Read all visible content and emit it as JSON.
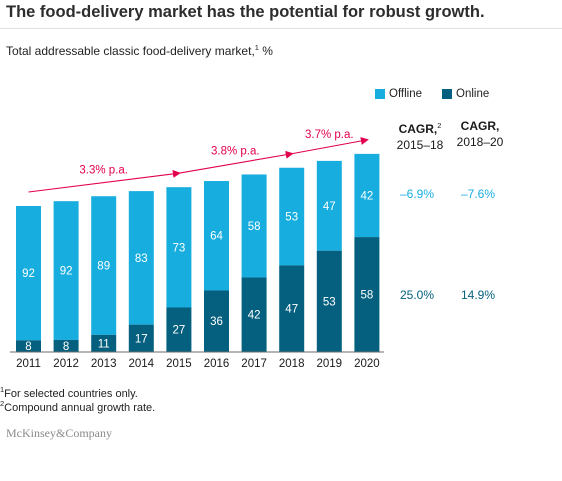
{
  "header": {
    "title": "The food-delivery market has the potential for robust growth.",
    "subtitle": "Total addressable classic food-delivery market,",
    "subtitle_sup": "1",
    "subtitle_unit": " %"
  },
  "legend": {
    "offline": "Offline",
    "online": "Online"
  },
  "cagr": {
    "col1_label": "CAGR,",
    "col1_sup": "2",
    "col1_period": "2015–18",
    "col2_label": "CAGR,",
    "col2_period": "2018–20",
    "offline_col1": "–6.9%",
    "offline_col2": "–7.6%",
    "online_col1": "25.0%",
    "online_col2": "14.9%"
  },
  "growth_annotations": [
    {
      "label": "3.3% p.a."
    },
    {
      "label": "3.8% p.a."
    },
    {
      "label": "3.7% p.a."
    }
  ],
  "footnotes": {
    "fn1_sup": "1",
    "fn1_text": "For selected countries only.",
    "fn2_sup": "2",
    "fn2_text": "Compound annual growth rate."
  },
  "source": "McKinsey&Company",
  "colors": {
    "offline": "#17aedf",
    "online": "#05607f",
    "arrow": "#e2004f",
    "text_dark": "#1a1a1a"
  },
  "chart_data": {
    "type": "bar",
    "stacked": true,
    "categories": [
      "2011",
      "2012",
      "2013",
      "2014",
      "2015",
      "2016",
      "2017",
      "2018",
      "2019",
      "2020"
    ],
    "series": [
      {
        "name": "Online",
        "values": [
          8,
          8,
          11,
          17,
          27,
          36,
          42,
          47,
          53,
          58
        ]
      },
      {
        "name": "Offline",
        "values": [
          92,
          92,
          89,
          83,
          73,
          64,
          58,
          53,
          47,
          42
        ]
      }
    ],
    "total_index": [
      100,
      103.3,
      106.7,
      110.2,
      112.9,
      117.1,
      121.6,
      126.2,
      130.9,
      135.7
    ],
    "grid": false,
    "legend_position": "top-right"
  }
}
